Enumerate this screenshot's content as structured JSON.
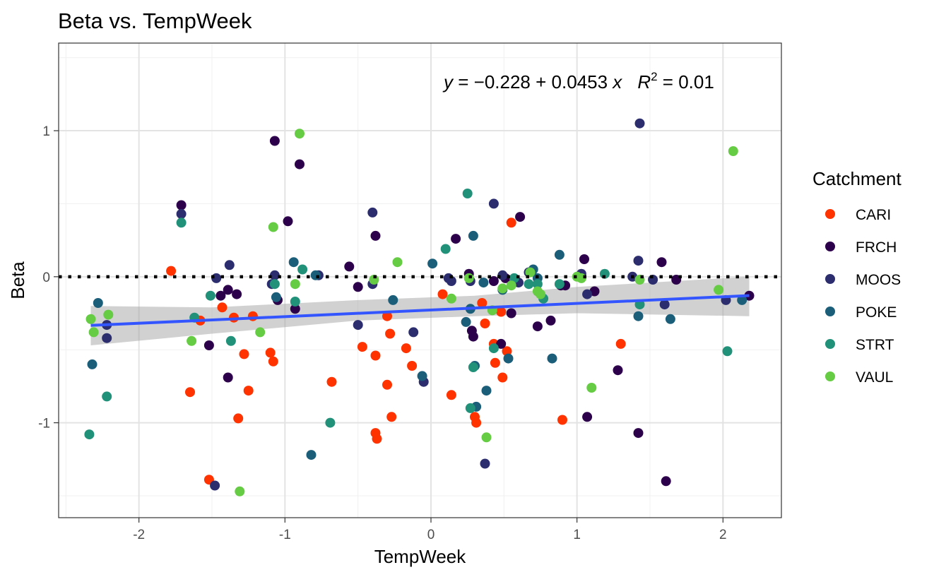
{
  "chart_data": {
    "type": "scatter",
    "title": "Beta vs. TempWeek",
    "xlabel": "TempWeek",
    "ylabel": "Beta",
    "xlim": [
      -2.55,
      2.4
    ],
    "ylim": [
      -1.65,
      1.6
    ],
    "x_ticks": [
      -2,
      -1,
      0,
      1,
      2
    ],
    "x_tick_labels": [
      "-2",
      "-1",
      "0",
      "1",
      "2"
    ],
    "y_ticks": [
      -1,
      0,
      1
    ],
    "y_tick_labels": [
      "-1",
      "0",
      "1"
    ],
    "grid": true,
    "legend": {
      "title": "Catchment",
      "position": "right"
    },
    "reference_line": {
      "y": 0,
      "style": "dotted"
    },
    "regression": {
      "intercept": -0.228,
      "slope": 0.0453,
      "r2": 0.01,
      "x_range": [
        -2.33,
        2.18
      ],
      "ci_lower": [
        [
          -2.33,
          -0.47
        ],
        [
          -1.5,
          -0.39
        ],
        [
          -0.5,
          -0.3
        ],
        [
          0.3,
          -0.27
        ],
        [
          1.0,
          -0.25
        ],
        [
          2.18,
          -0.27
        ]
      ],
      "ci_upper": [
        [
          -2.33,
          -0.2
        ],
        [
          -1.5,
          -0.21
        ],
        [
          -0.5,
          -0.16
        ],
        [
          0.3,
          -0.13
        ],
        [
          1.0,
          -0.07
        ],
        [
          2.18,
          0.0
        ]
      ],
      "color": "#3355ff",
      "equation_parts": {
        "y_var": "y",
        "equals": " = ",
        "minus": "−",
        "intercept_abs": "0.228",
        "plus": " + ",
        "slope": "0.0453",
        "x_var": " x",
        "r_var": "R",
        "exponent": "2",
        "r2_value": " = 0.01"
      }
    },
    "series": [
      {
        "name": "CARI",
        "color": "#ff3300",
        "points": [
          [
            -1.78,
            0.04
          ],
          [
            -1.65,
            -0.79
          ],
          [
            -1.58,
            -0.3
          ],
          [
            -1.52,
            -1.39
          ],
          [
            -1.43,
            -0.21
          ],
          [
            -1.35,
            -0.28
          ],
          [
            -1.32,
            -0.97
          ],
          [
            -1.28,
            -0.53
          ],
          [
            -1.25,
            -0.78
          ],
          [
            -1.22,
            -0.27
          ],
          [
            -1.1,
            -0.52
          ],
          [
            -1.08,
            -0.58
          ],
          [
            -0.68,
            -0.72
          ],
          [
            -0.47,
            -0.48
          ],
          [
            -0.38,
            -0.54
          ],
          [
            -0.38,
            -1.07
          ],
          [
            -0.37,
            -1.11
          ],
          [
            -0.3,
            -0.27
          ],
          [
            -0.3,
            -0.74
          ],
          [
            -0.28,
            -0.39
          ],
          [
            -0.27,
            -0.96
          ],
          [
            -0.17,
            -0.49
          ],
          [
            -0.13,
            -0.61
          ],
          [
            0.08,
            -0.12
          ],
          [
            0.14,
            -0.81
          ],
          [
            0.3,
            -0.96
          ],
          [
            0.31,
            -1.0
          ],
          [
            0.35,
            -0.18
          ],
          [
            0.37,
            -0.32
          ],
          [
            0.43,
            -0.46
          ],
          [
            0.44,
            -0.59
          ],
          [
            0.48,
            -0.24
          ],
          [
            0.49,
            -0.69
          ],
          [
            0.52,
            -0.51
          ],
          [
            0.55,
            0.37
          ],
          [
            0.9,
            -0.98
          ],
          [
            1.3,
            -0.46
          ]
        ]
      },
      {
        "name": "FRCH",
        "color": "#2d004b",
        "points": [
          [
            -1.71,
            0.49
          ],
          [
            -1.52,
            -0.47
          ],
          [
            -1.44,
            -0.13
          ],
          [
            -1.39,
            -0.09
          ],
          [
            -1.39,
            -0.69
          ],
          [
            -1.33,
            -0.12
          ],
          [
            -1.07,
            0.93
          ],
          [
            -1.05,
            -0.16
          ],
          [
            -0.98,
            0.38
          ],
          [
            -0.93,
            -0.22
          ],
          [
            -0.9,
            0.77
          ],
          [
            -0.56,
            0.07
          ],
          [
            -0.5,
            -0.07
          ],
          [
            -0.38,
            0.28
          ],
          [
            0.17,
            0.26
          ],
          [
            0.26,
            0.02
          ],
          [
            0.28,
            -0.37
          ],
          [
            0.29,
            -0.41
          ],
          [
            0.43,
            -0.03
          ],
          [
            0.48,
            -0.46
          ],
          [
            0.51,
            -0.01
          ],
          [
            0.55,
            -0.25
          ],
          [
            0.61,
            0.41
          ],
          [
            0.73,
            -0.34
          ],
          [
            0.82,
            -0.3
          ],
          [
            0.89,
            -0.06
          ],
          [
            0.92,
            -0.06
          ],
          [
            1.05,
            0.12
          ],
          [
            1.07,
            -0.96
          ],
          [
            1.12,
            -0.1
          ],
          [
            1.28,
            -0.64
          ],
          [
            1.42,
            -1.07
          ],
          [
            1.61,
            -1.4
          ],
          [
            1.58,
            0.1
          ],
          [
            1.68,
            -0.02
          ],
          [
            2.18,
            -0.13
          ]
        ]
      },
      {
        "name": "MOOS",
        "color": "#2b2d6e",
        "points": [
          [
            -1.71,
            0.43
          ],
          [
            -2.22,
            -0.33
          ],
          [
            -2.22,
            -0.42
          ],
          [
            -1.48,
            -1.43
          ],
          [
            -1.47,
            -0.01
          ],
          [
            -1.38,
            0.08
          ],
          [
            -1.09,
            -0.05
          ],
          [
            -1.07,
            0.01
          ],
          [
            -0.77,
            0.01
          ],
          [
            -0.5,
            -0.33
          ],
          [
            -0.4,
            0.44
          ],
          [
            -0.4,
            -0.05
          ],
          [
            -0.12,
            -0.38
          ],
          [
            -0.05,
            -0.72
          ],
          [
            0.12,
            -0.01
          ],
          [
            0.14,
            -0.03
          ],
          [
            0.27,
            -0.03
          ],
          [
            0.37,
            -1.28
          ],
          [
            0.43,
            0.5
          ],
          [
            0.49,
            0.01
          ],
          [
            0.6,
            -0.04
          ],
          [
            0.67,
            0.03
          ],
          [
            1.03,
            0.02
          ],
          [
            1.07,
            -0.12
          ],
          [
            1.38,
            0.0
          ],
          [
            1.42,
            0.11
          ],
          [
            1.43,
            1.05
          ],
          [
            1.52,
            -0.02
          ],
          [
            1.6,
            -0.19
          ],
          [
            2.02,
            -0.16
          ]
        ]
      },
      {
        "name": "POKE",
        "color": "#1b5e7a",
        "points": [
          [
            -2.32,
            -0.6
          ],
          [
            -2.28,
            -0.18
          ],
          [
            -1.06,
            -0.14
          ],
          [
            -0.94,
            0.1
          ],
          [
            -0.82,
            -1.22
          ],
          [
            -0.79,
            0.01
          ],
          [
            -0.26,
            -0.16
          ],
          [
            0.01,
            0.09
          ],
          [
            -0.06,
            -0.68
          ],
          [
            0.24,
            -0.31
          ],
          [
            0.27,
            -0.22
          ],
          [
            0.29,
            0.28
          ],
          [
            0.3,
            -0.61
          ],
          [
            0.31,
            -0.89
          ],
          [
            0.36,
            -0.04
          ],
          [
            0.38,
            -0.78
          ],
          [
            0.49,
            -0.09
          ],
          [
            0.53,
            -0.56
          ],
          [
            0.7,
            0.05
          ],
          [
            0.73,
            -0.01
          ],
          [
            0.83,
            -0.56
          ],
          [
            0.88,
            0.15
          ],
          [
            1.42,
            -0.27
          ],
          [
            1.64,
            -0.29
          ],
          [
            2.13,
            -0.16
          ]
        ]
      },
      {
        "name": "STRT",
        "color": "#21917a",
        "points": [
          [
            -2.34,
            -1.08
          ],
          [
            -2.22,
            -0.82
          ],
          [
            -1.71,
            0.37
          ],
          [
            -1.62,
            -0.28
          ],
          [
            -1.51,
            -0.13
          ],
          [
            -1.37,
            -0.44
          ],
          [
            -1.07,
            -0.05
          ],
          [
            -0.93,
            -0.17
          ],
          [
            -0.88,
            0.05
          ],
          [
            -0.69,
            -1.0
          ],
          [
            0.1,
            0.19
          ],
          [
            0.25,
            0.57
          ],
          [
            0.27,
            -0.9
          ],
          [
            0.29,
            -0.62
          ],
          [
            0.43,
            -0.49
          ],
          [
            0.57,
            -0.01
          ],
          [
            0.67,
            -0.05
          ],
          [
            0.73,
            -0.05
          ],
          [
            0.77,
            -0.15
          ],
          [
            0.88,
            -0.05
          ],
          [
            1.19,
            0.02
          ],
          [
            1.43,
            -0.19
          ],
          [
            2.03,
            -0.51
          ]
        ]
      },
      {
        "name": "VAUL",
        "color": "#66cc44",
        "points": [
          [
            -2.33,
            -0.29
          ],
          [
            -2.31,
            -0.38
          ],
          [
            -2.21,
            -0.26
          ],
          [
            -1.64,
            -0.44
          ],
          [
            -1.31,
            -1.47
          ],
          [
            -1.17,
            -0.38
          ],
          [
            -1.08,
            0.34
          ],
          [
            -0.93,
            -0.05
          ],
          [
            -0.9,
            0.98
          ],
          [
            -0.39,
            -0.02
          ],
          [
            -0.23,
            0.1
          ],
          [
            0.14,
            -0.15
          ],
          [
            0.26,
            -0.01
          ],
          [
            0.38,
            -1.1
          ],
          [
            0.42,
            -0.23
          ],
          [
            0.49,
            -0.08
          ],
          [
            0.55,
            -0.06
          ],
          [
            0.68,
            0.03
          ],
          [
            0.73,
            -0.1
          ],
          [
            0.75,
            -0.12
          ],
          [
            1.0,
            0.0
          ],
          [
            1.03,
            -0.01
          ],
          [
            1.1,
            -0.76
          ],
          [
            1.43,
            -0.02
          ],
          [
            1.97,
            -0.09
          ],
          [
            2.07,
            0.86
          ]
        ]
      }
    ]
  }
}
